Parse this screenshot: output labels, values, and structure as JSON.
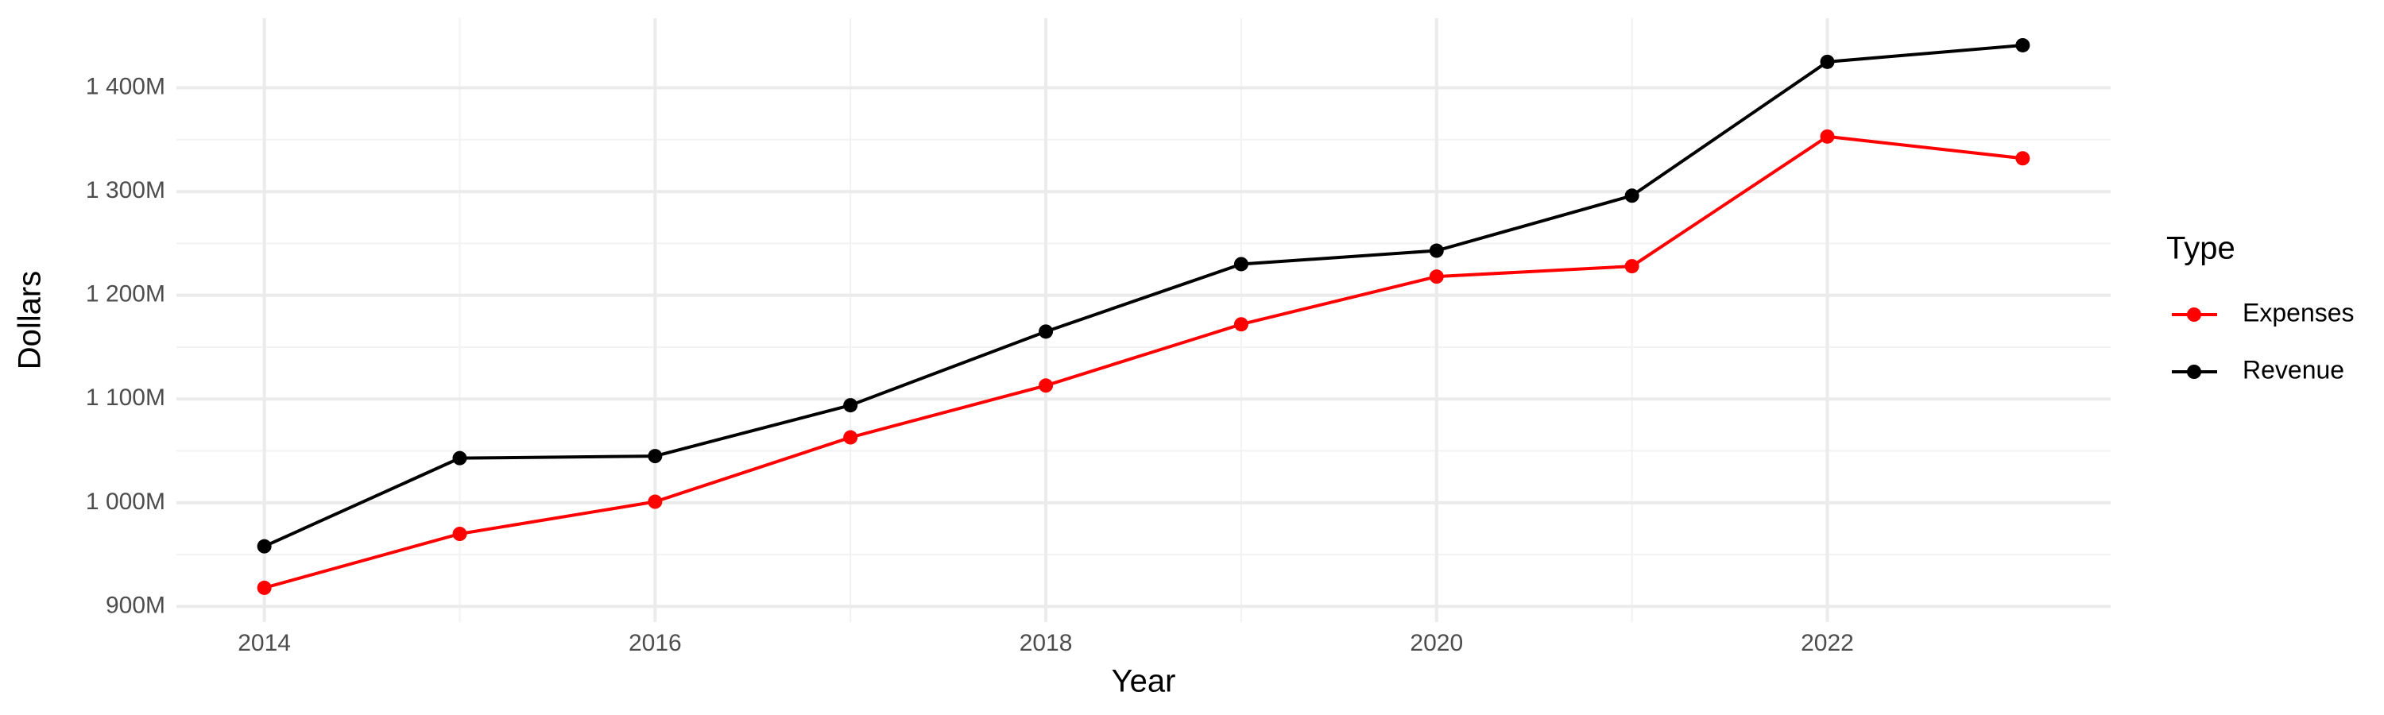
{
  "chart_data": {
    "type": "line",
    "x_label": "Year",
    "y_label": "Dollars",
    "legend_title": "Type",
    "x": [
      2014,
      2015,
      2016,
      2017,
      2018,
      2019,
      2020,
      2021,
      2022,
      2023
    ],
    "series": [
      {
        "name": "Expenses",
        "color": "#ff0000",
        "values": [
          918000000,
          970000000,
          1001000000,
          1063000000,
          1113000000,
          1172000000,
          1218000000,
          1228000000,
          1353000000,
          1332000000
        ]
      },
      {
        "name": "Revenue",
        "color": "#000000",
        "values": [
          958000000,
          1043000000,
          1045000000,
          1094000000,
          1165000000,
          1230000000,
          1243000000,
          1296000000,
          1425000000,
          1441000000
        ]
      }
    ],
    "xlim": [
      2013.55,
      2023.45
    ],
    "xticks": [
      2014,
      2016,
      2018,
      2020,
      2022
    ],
    "ylim": [
      885000000,
      1467000000
    ],
    "yticks": [
      {
        "value": 900000000,
        "label": "900M"
      },
      {
        "value": 1000000000,
        "label": "1 000M"
      },
      {
        "value": 1100000000,
        "label": "1 100M"
      },
      {
        "value": 1200000000,
        "label": "1 200M"
      },
      {
        "value": 1300000000,
        "label": "1 300M"
      },
      {
        "value": 1400000000,
        "label": "1 400M"
      }
    ],
    "grid": true,
    "legend": "right"
  }
}
